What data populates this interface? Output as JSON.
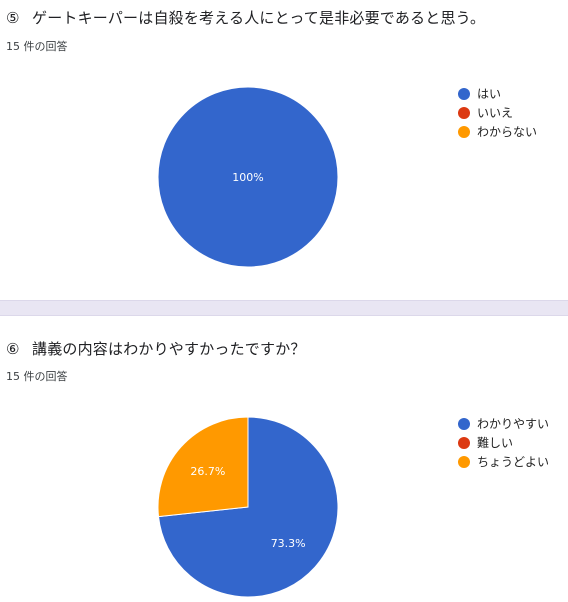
{
  "questions": [
    {
      "number": "⑤",
      "title": "ゲートキーパーは自殺を考える人にとって是非必要であると思う。",
      "responses": "15 件の回答",
      "legend": [
        {
          "label": "はい",
          "color": "#3366cc"
        },
        {
          "label": "いいえ",
          "color": "#dc3912"
        },
        {
          "label": "わからない",
          "color": "#ff9900"
        }
      ]
    },
    {
      "number": "⑥",
      "title": "講義の内容はわかりやすかったですか？",
      "responses": "15 件の回答",
      "legend": [
        {
          "label": "わかりやすい",
          "color": "#3366cc"
        },
        {
          "label": "難しい",
          "color": "#dc3912"
        },
        {
          "label": "ちょうどよい",
          "color": "#ff9900"
        }
      ]
    }
  ],
  "chart_data": [
    {
      "type": "pie",
      "categories": [
        "はい",
        "いいえ",
        "わからない"
      ],
      "values": [
        100,
        0,
        0
      ],
      "labels": [
        "100%",
        "",
        ""
      ],
      "colors": [
        "#3366cc",
        "#dc3912",
        "#ff9900"
      ],
      "legend": "right"
    },
    {
      "type": "pie",
      "categories": [
        "わかりやすい",
        "難しい",
        "ちょうどよい"
      ],
      "values": [
        73.3,
        0,
        26.7
      ],
      "labels": [
        "73.3%",
        "",
        "26.7%"
      ],
      "colors": [
        "#3366cc",
        "#dc3912",
        "#ff9900"
      ],
      "legend": "right"
    }
  ]
}
